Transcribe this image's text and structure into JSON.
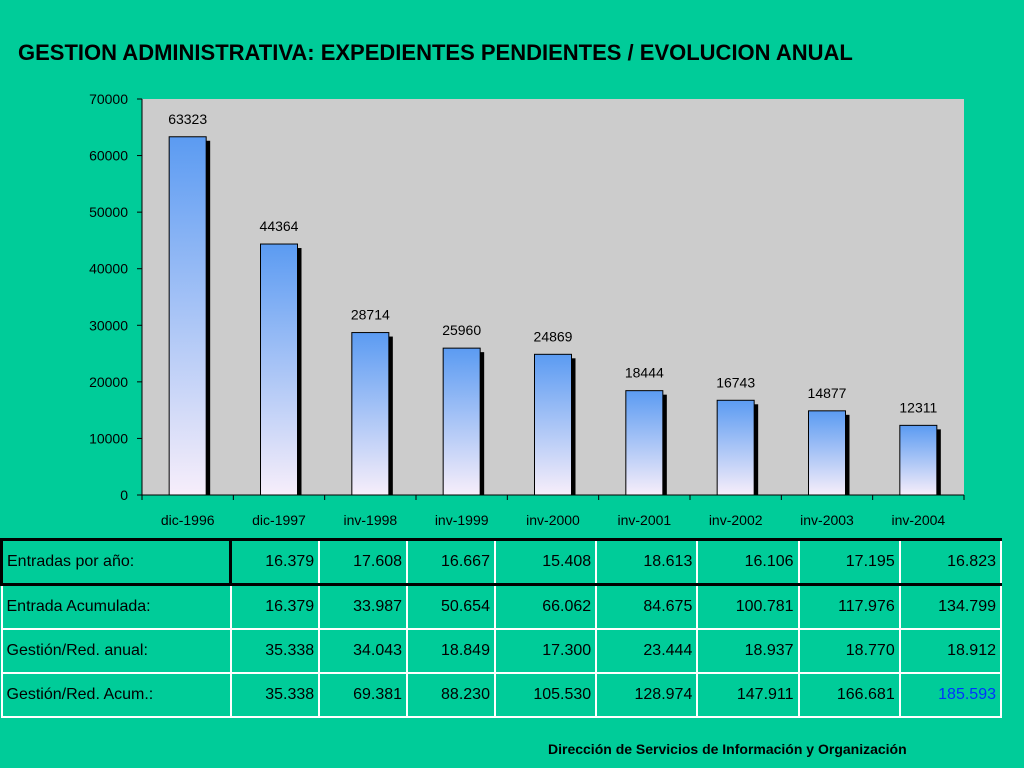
{
  "title": "GESTION ADMINISTRATIVA: EXPEDIENTES PENDIENTES / EVOLUCION ANUAL",
  "footer": "Dirección de Servicios de  Información y Organización",
  "colors": {
    "background": "#00cc99",
    "plot_area": "#cccccc",
    "bar_top": "#5b9bf2",
    "bar_bottom": "#f7eefa",
    "highlight": "#0033ff"
  },
  "chart_data": {
    "type": "bar",
    "categories": [
      "dic-1996",
      "dic-1997",
      "inv-1998",
      "inv-1999",
      "inv-2000",
      "inv-2001",
      "inv-2002",
      "inv-2003",
      "inv-2004"
    ],
    "values": [
      63323,
      44364,
      28714,
      25960,
      24869,
      18444,
      16743,
      14877,
      12311
    ],
    "data_labels": [
      "63323",
      "44364",
      "28714",
      "25960",
      "24869",
      "18444",
      "16743",
      "14877",
      "12311"
    ],
    "ylim": [
      0,
      70000
    ],
    "yticks": [
      "0",
      "10000",
      "20000",
      "30000",
      "40000",
      "50000",
      "60000",
      "70000"
    ],
    "ytick_values": [
      0,
      10000,
      20000,
      30000,
      40000,
      50000,
      60000,
      70000
    ],
    "grid": false,
    "legend": "none",
    "xlabel": "",
    "ylabel": ""
  },
  "table": {
    "rows": [
      {
        "label": "Entradas por año:",
        "values": [
          "16.379",
          "17.608",
          "16.667",
          "15.408",
          "18.613",
          "16.106",
          "17.195",
          "16.823"
        ]
      },
      {
        "label": "Entrada Acumulada:",
        "values": [
          "16.379",
          "33.987",
          "50.654",
          "66.062",
          "84.675",
          "100.781",
          "117.976",
          "134.799"
        ]
      },
      {
        "label": "Gestión/Red. anual:",
        "values": [
          "35.338",
          "34.043",
          "18.849",
          "17.300",
          "23.444",
          "18.937",
          "18.770",
          "18.912"
        ]
      },
      {
        "label": "Gestión/Red. Acum.:",
        "values": [
          "35.338",
          "69.381",
          "88.230",
          "105.530",
          "128.974",
          "147.911",
          "166.681",
          "185.593"
        ]
      }
    ]
  }
}
